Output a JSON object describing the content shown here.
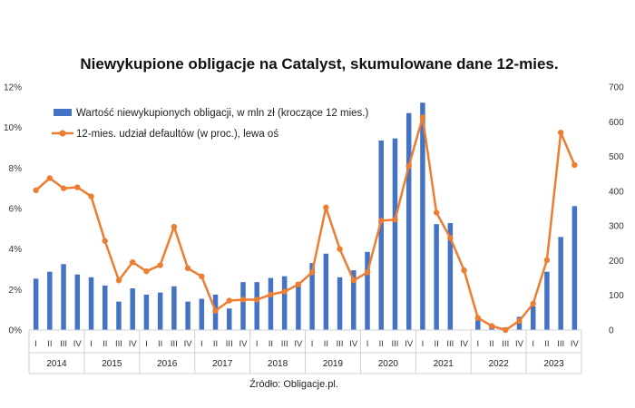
{
  "chart_data": {
    "type": "bar+line",
    "title": "Niewykupione obligacje na Catalyst, skumulowane dane 12-mies.",
    "source": "Źródło: Obligacje.pl.",
    "years": [
      "2014",
      "2015",
      "2016",
      "2017",
      "2018",
      "2019",
      "2020",
      "2021",
      "2022",
      "2023"
    ],
    "quarters": [
      "I",
      "II",
      "III",
      "IV"
    ],
    "categories": [
      "I",
      "II",
      "III",
      "IV",
      "I",
      "II",
      "III",
      "IV",
      "I",
      "II",
      "III",
      "IV",
      "I",
      "II",
      "III",
      "IV",
      "I",
      "II",
      "III",
      "IV",
      "I",
      "II",
      "III",
      "IV",
      "I",
      "II",
      "III",
      "IV",
      "I",
      "II",
      "III",
      "IV",
      "I",
      "II",
      "III",
      "IV",
      "I",
      "II",
      "III",
      "IV"
    ],
    "series": [
      {
        "name": "Wartość niewykupionych obligacji, w mln zł (kroczące 12 mies.)",
        "type": "bar",
        "axis": "right",
        "color": "#4472C4",
        "values": [
          148,
          168,
          190,
          160,
          152,
          128,
          82,
          120,
          102,
          108,
          126,
          82,
          90,
          102,
          62,
          138,
          138,
          150,
          155,
          138,
          193,
          220,
          152,
          172,
          225,
          546,
          552,
          625,
          655,
          305,
          308,
          0,
          28,
          10,
          8,
          38,
          68,
          168,
          268,
          357
        ]
      },
      {
        "name": "12-mies. udział defaultów (w proc.), lewa oś",
        "type": "line",
        "axis": "left",
        "color": "#ED7D31",
        "values": [
          6.9,
          7.5,
          7.0,
          7.05,
          6.6,
          4.4,
          2.45,
          3.35,
          2.9,
          3.2,
          5.1,
          3.05,
          2.65,
          0.95,
          1.45,
          1.5,
          1.5,
          1.75,
          1.9,
          2.25,
          2.85,
          6.05,
          4.0,
          2.45,
          2.85,
          5.4,
          5.45,
          8.1,
          10.5,
          5.8,
          4.55,
          2.95,
          0.6,
          0.2,
          0.0,
          0.45,
          1.3,
          3.45,
          9.75,
          8.15
        ]
      }
    ],
    "y_left": {
      "ticks": [
        "0%",
        "2%",
        "4%",
        "6%",
        "8%",
        "10%",
        "12%"
      ],
      "range": [
        0,
        12
      ]
    },
    "y_right": {
      "ticks": [
        "0",
        "100",
        "200",
        "300",
        "400",
        "500",
        "600",
        "700"
      ],
      "range": [
        0,
        700
      ]
    },
    "legend_position": "top-left",
    "grid": false
  }
}
